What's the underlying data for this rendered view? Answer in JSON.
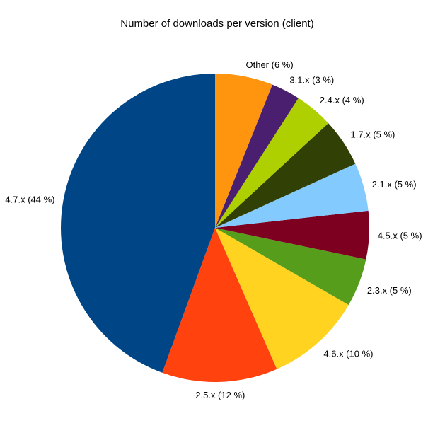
{
  "chart_data": {
    "type": "pie",
    "title": "Number of downloads per version (client)",
    "start_angle_deg": 90,
    "direction": "counterclockwise",
    "legend_position": "none",
    "background_color": "#FFFFFF",
    "title_color": "#000000",
    "label_color": "#000000",
    "slices": [
      {
        "name": "4.7.x",
        "label": "4.7.x (44 %)",
        "value": 44,
        "color": "#004586"
      },
      {
        "name": "2.5.x",
        "label": "2.5.x (12 %)",
        "value": 12,
        "color": "#FF420E"
      },
      {
        "name": "4.6.x",
        "label": "4.6.x (10 %)",
        "value": 10,
        "color": "#FFD320"
      },
      {
        "name": "2.3.x",
        "label": "2.3.x (5 %)",
        "value": 5,
        "color": "#579D1C"
      },
      {
        "name": "4.5.x",
        "label": "4.5.x (5 %)",
        "value": 5,
        "color": "#7E0021"
      },
      {
        "name": "2.1.x",
        "label": "2.1.x (5 %)",
        "value": 5,
        "color": "#83CAFF"
      },
      {
        "name": "1.7.x",
        "label": "1.7.x (5 %)",
        "value": 5,
        "color": "#314004"
      },
      {
        "name": "2.4.x",
        "label": "2.4.x (4 %)",
        "value": 4,
        "color": "#AECF00"
      },
      {
        "name": "3.1.x",
        "label": "3.1.x (3 %)",
        "value": 3,
        "color": "#4B1F6F"
      },
      {
        "name": "Other",
        "label": "Other (6 %)",
        "value": 6,
        "color": "#FF950E"
      }
    ]
  }
}
